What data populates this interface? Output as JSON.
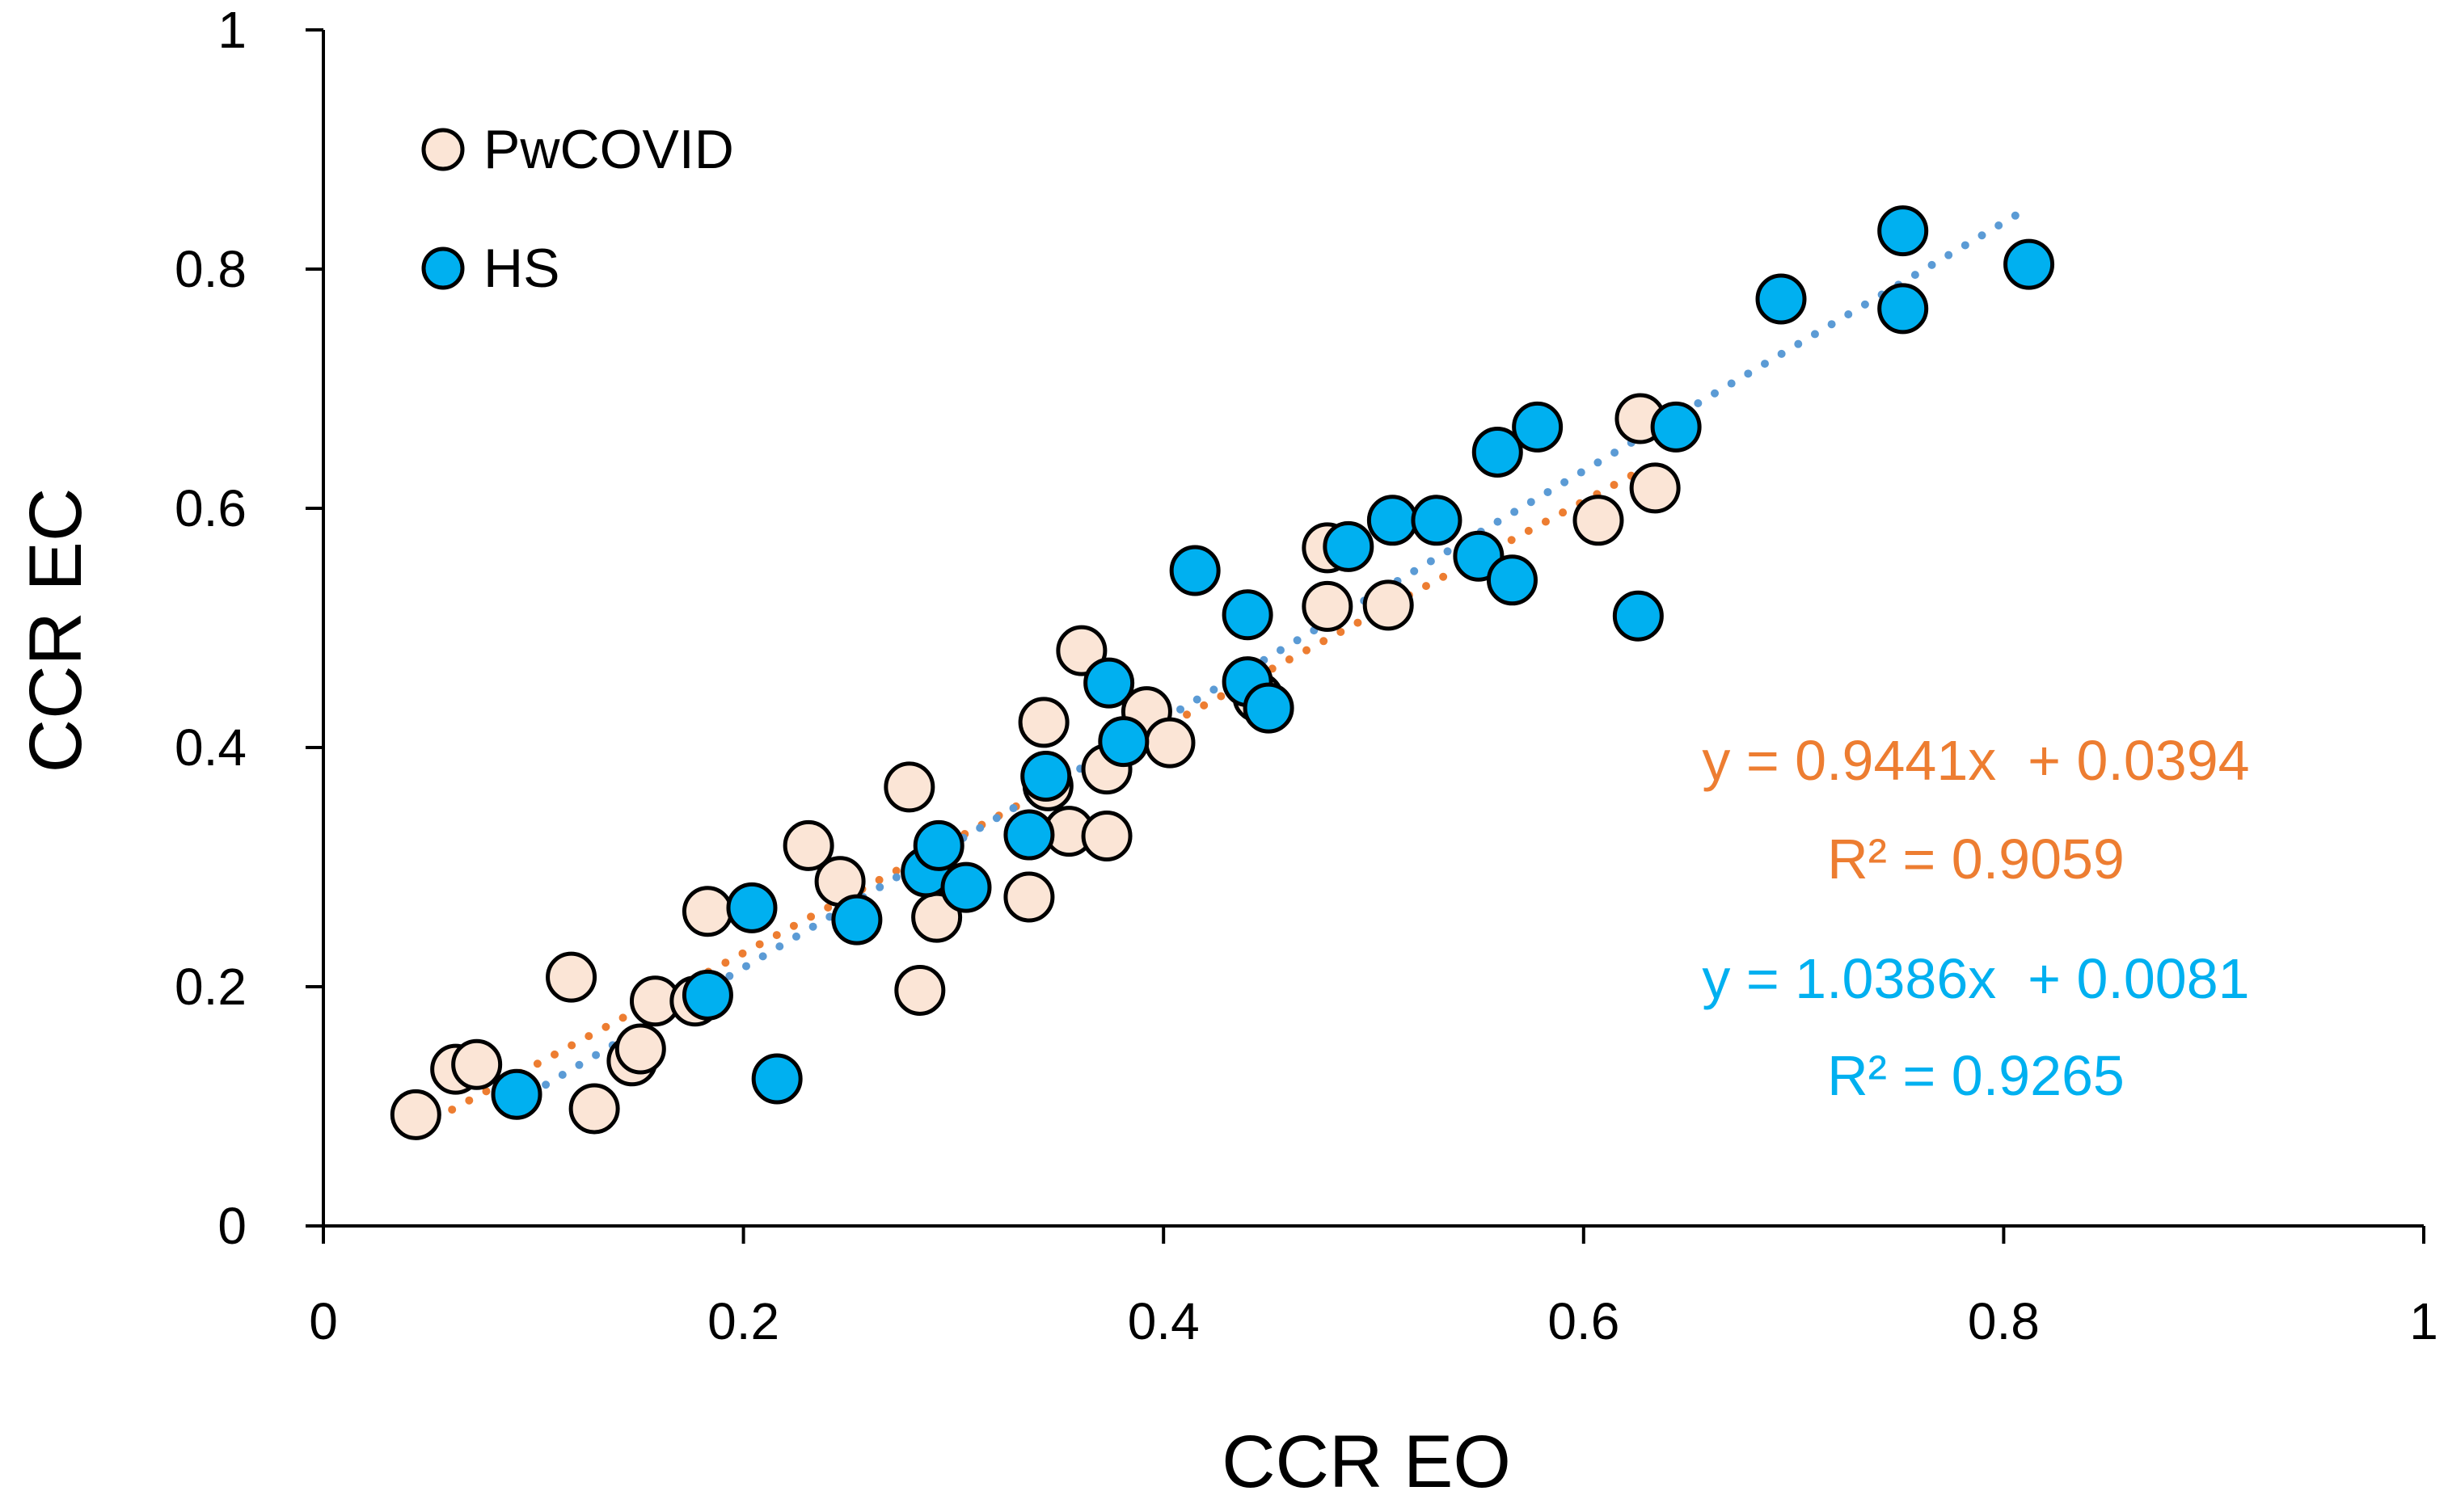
{
  "chart_data": {
    "type": "scatter",
    "title": "",
    "xlabel": "CCR EO",
    "ylabel": "CCR EC",
    "xlim": [
      0,
      1
    ],
    "ylim": [
      0,
      1
    ],
    "x_ticks": [
      0,
      0.2,
      0.4,
      0.6,
      0.8,
      1
    ],
    "y_ticks": [
      0,
      0.2,
      0.4,
      0.6,
      0.8,
      1
    ],
    "x_tick_labels": [
      "0",
      "0.2",
      "0.4",
      "0.6",
      "0.8",
      "1"
    ],
    "y_tick_labels": [
      "0",
      "0.2",
      "0.4",
      "0.6",
      "0.8",
      "1"
    ],
    "grid": false,
    "legend_position": "top-left",
    "series": [
      {
        "name": "PwCOVID",
        "color": "#FBE5D6",
        "edge_color": "#000000",
        "trendline_color": "#ED7D31",
        "trendline": {
          "slope": 0.9441,
          "intercept": 0.0394,
          "x_range": [
            0.045,
            0.63
          ]
        },
        "equation_label": "y = 0.9441x  + 0.0394",
        "r2_label": "R² = 0.9059",
        "points": [
          [
            0.044,
            0.093
          ],
          [
            0.063,
            0.131
          ],
          [
            0.073,
            0.135
          ],
          [
            0.118,
            0.208
          ],
          [
            0.129,
            0.098
          ],
          [
            0.147,
            0.138
          ],
          [
            0.151,
            0.148
          ],
          [
            0.158,
            0.188
          ],
          [
            0.177,
            0.188
          ],
          [
            0.183,
            0.263
          ],
          [
            0.231,
            0.318
          ],
          [
            0.246,
            0.288
          ],
          [
            0.279,
            0.367
          ],
          [
            0.284,
            0.197
          ],
          [
            0.292,
            0.258
          ],
          [
            0.336,
            0.275
          ],
          [
            0.343,
            0.421
          ],
          [
            0.345,
            0.368
          ],
          [
            0.355,
            0.33
          ],
          [
            0.361,
            0.481
          ],
          [
            0.373,
            0.382
          ],
          [
            0.373,
            0.326
          ],
          [
            0.392,
            0.43
          ],
          [
            0.403,
            0.404
          ],
          [
            0.445,
            0.442
          ],
          [
            0.478,
            0.567
          ],
          [
            0.478,
            0.518
          ],
          [
            0.507,
            0.519
          ],
          [
            0.607,
            0.59
          ],
          [
            0.627,
            0.675
          ],
          [
            0.634,
            0.617
          ]
        ]
      },
      {
        "name": "HS",
        "color": "#00B0F0",
        "edge_color": "#000000",
        "trendline_color": "#5B9BD5",
        "trendline": {
          "slope": 1.0386,
          "intercept": 0.0081,
          "x_range": [
            0.09,
            0.81
          ]
        },
        "equation_label": "y = 1.0386x  + 0.0081",
        "r2_label": "R² = 0.9265",
        "points": [
          [
            0.092,
            0.11
          ],
          [
            0.183,
            0.193
          ],
          [
            0.204,
            0.266
          ],
          [
            0.216,
            0.123
          ],
          [
            0.254,
            0.256
          ],
          [
            0.287,
            0.296
          ],
          [
            0.293,
            0.318
          ],
          [
            0.306,
            0.283
          ],
          [
            0.336,
            0.327
          ],
          [
            0.344,
            0.376
          ],
          [
            0.374,
            0.454
          ],
          [
            0.381,
            0.405
          ],
          [
            0.415,
            0.548
          ],
          [
            0.44,
            0.511
          ],
          [
            0.44,
            0.455
          ],
          [
            0.45,
            0.433
          ],
          [
            0.488,
            0.568
          ],
          [
            0.509,
            0.59
          ],
          [
            0.53,
            0.59
          ],
          [
            0.55,
            0.56
          ],
          [
            0.559,
            0.647
          ],
          [
            0.566,
            0.54
          ],
          [
            0.578,
            0.668
          ],
          [
            0.626,
            0.51
          ],
          [
            0.644,
            0.668
          ],
          [
            0.694,
            0.775
          ],
          [
            0.752,
            0.832
          ],
          [
            0.752,
            0.767
          ],
          [
            0.812,
            0.804
          ]
        ]
      }
    ]
  }
}
